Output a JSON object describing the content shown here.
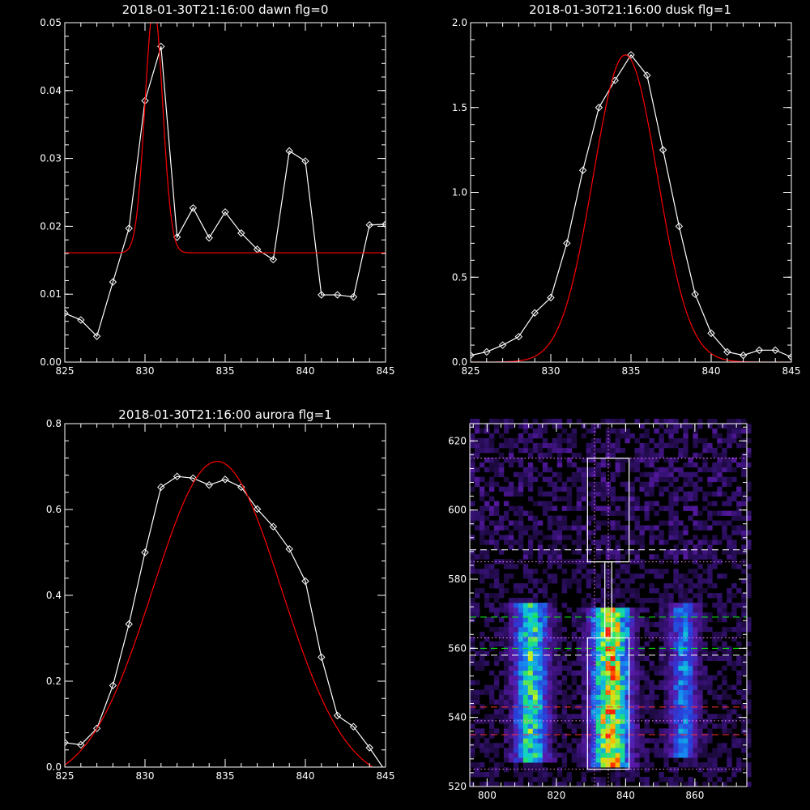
{
  "colors": {
    "background": "#000000",
    "axes": "#ffffff",
    "data_line": "#ffffff",
    "fit_line": "#ff0000",
    "white_dashed": "#ffffff",
    "green_dashed": "#00ff00",
    "red_dashed": "#ff3030",
    "dotted": "#ff88ff",
    "colormap": [
      "#000000",
      "#30106a",
      "#5a1aa8",
      "#2a3cd8",
      "#1688f0",
      "#10d0d0",
      "#20e070",
      "#c8f020",
      "#ffb000",
      "#ff2000"
    ]
  },
  "chart_data": [
    {
      "id": "dawn",
      "type": "line",
      "title": "2018-01-30T21:16:00 dawn flg=0",
      "xlabel": "",
      "ylabel": "",
      "xlim": [
        825,
        845
      ],
      "ylim": [
        0,
        0.05
      ],
      "xticks": [
        825,
        830,
        835,
        840,
        845
      ],
      "yticks": [
        0.0,
        0.01,
        0.02,
        0.03,
        0.04,
        0.05
      ],
      "ytick_labels": [
        "0.00",
        "0.01",
        "0.02",
        "0.03",
        "0.04",
        "0.05"
      ],
      "xtick_labels": [
        "825",
        "830",
        "835",
        "840",
        "845"
      ],
      "grid": false,
      "series": [
        {
          "role": "data",
          "color": "#ffffff",
          "marker": "diamond",
          "x": [
            825,
            826,
            827,
            828,
            829,
            830,
            831,
            832,
            833,
            834,
            835,
            836,
            837,
            838,
            839,
            840,
            841,
            842,
            843,
            844,
            845
          ],
          "y": [
            0.0072,
            0.0062,
            0.0038,
            0.0118,
            0.0197,
            0.0385,
            0.0465,
            0.0184,
            0.0227,
            0.0183,
            0.0221,
            0.019,
            0.0166,
            0.0151,
            0.0311,
            0.0296,
            0.0099,
            0.0099,
            0.0096,
            0.0202,
            0.0203
          ]
        },
        {
          "role": "fit",
          "color": "#ff0000",
          "gaussian": {
            "amplitude": 0.0363,
            "center": 830.55,
            "sigma": 0.55,
            "baseline": 0.0161
          }
        }
      ]
    },
    {
      "id": "dusk",
      "type": "line",
      "title": "2018-01-30T21:16:00 dusk flg=1",
      "xlabel": "",
      "ylabel": "",
      "xlim": [
        825,
        845
      ],
      "ylim": [
        0,
        2.0
      ],
      "xticks": [
        825,
        830,
        835,
        840,
        845
      ],
      "yticks": [
        0.0,
        0.5,
        1.0,
        1.5,
        2.0
      ],
      "ytick_labels": [
        "0.0",
        "0.5",
        "1.0",
        "1.5",
        "2.0"
      ],
      "xtick_labels": [
        "825",
        "830",
        "835",
        "840",
        "845"
      ],
      "grid": false,
      "series": [
        {
          "role": "data",
          "color": "#ffffff",
          "marker": "diamond",
          "x": [
            825,
            826,
            827,
            828,
            829,
            830,
            831,
            832,
            833,
            834,
            835,
            836,
            837,
            838,
            839,
            840,
            841,
            842,
            843,
            844,
            845
          ],
          "y": [
            0.04,
            0.06,
            0.1,
            0.15,
            0.29,
            0.38,
            0.7,
            1.13,
            1.5,
            1.66,
            1.81,
            1.69,
            1.25,
            0.8,
            0.4,
            0.17,
            0.06,
            0.04,
            0.07,
            0.07,
            0.03
          ]
        },
        {
          "role": "fit",
          "color": "#ff0000",
          "gaussian": {
            "amplitude": 1.81,
            "center": 834.65,
            "sigma": 2.0,
            "baseline": 0.0
          }
        }
      ]
    },
    {
      "id": "aurora",
      "type": "line",
      "title": "2018-01-30T21:16:00 aurora flg=1",
      "xlabel": "",
      "ylabel": "",
      "xlim": [
        825,
        845
      ],
      "ylim": [
        0,
        0.8
      ],
      "xticks": [
        825,
        830,
        835,
        840,
        845
      ],
      "yticks": [
        0.0,
        0.2,
        0.4,
        0.6,
        0.8
      ],
      "ytick_labels": [
        "0.0",
        "0.2",
        "0.4",
        "0.6",
        "0.8"
      ],
      "xtick_labels": [
        "825",
        "830",
        "835",
        "840",
        "845"
      ],
      "grid": false,
      "series": [
        {
          "role": "data",
          "color": "#ffffff",
          "marker": "diamond",
          "x": [
            825,
            826,
            827,
            828,
            829,
            830,
            831,
            832,
            833,
            834,
            835,
            836,
            837,
            838,
            839,
            840,
            841,
            842,
            843,
            844,
            845
          ],
          "y": [
            0.057,
            0.052,
            0.09,
            0.19,
            0.333,
            0.5,
            0.652,
            0.677,
            0.673,
            0.657,
            0.67,
            0.652,
            0.601,
            0.56,
            0.508,
            0.433,
            0.256,
            0.12,
            0.094,
            0.045,
            -0.01
          ]
        },
        {
          "role": "fit",
          "color": "#ff0000",
          "gaussian": {
            "amplitude": 0.752,
            "center": 834.5,
            "sigma": 4.0,
            "baseline": -0.04
          }
        }
      ]
    },
    {
      "id": "spectrogram",
      "type": "heatmap",
      "title": "",
      "xlabel": "",
      "ylabel": "",
      "xlim": [
        795,
        875
      ],
      "ylim": [
        520,
        625
      ],
      "xticks": [
        800,
        820,
        840,
        860
      ],
      "xtick_labels": [
        "800",
        "820",
        "840",
        "860"
      ],
      "yticks": [
        520,
        540,
        560,
        580,
        600,
        620
      ],
      "ytick_labels": [
        "520",
        "540",
        "560",
        "580",
        "600",
        "620"
      ],
      "grid": false,
      "bands": [
        {
          "center": 812,
          "width": 3.2,
          "y_from": 526,
          "y_to": 572,
          "peak": 0.72
        },
        {
          "center": 835,
          "width": 3.6,
          "y_from": 525,
          "y_to": 571,
          "peak": 1.0
        },
        {
          "center": 856,
          "width": 2.6,
          "y_from": 528,
          "y_to": 572,
          "peak": 0.45
        }
      ],
      "boxes": [
        {
          "x0": 829,
          "x1": 841,
          "y0": 585,
          "y1": 615
        },
        {
          "x0": 829,
          "x1": 841,
          "y0": 525,
          "y1": 563
        },
        {
          "x0": 834,
          "x1": 836,
          "y0": 563,
          "y1": 585
        }
      ],
      "hlines": [
        {
          "y": 588.5,
          "style": "dashed",
          "color": "#ffffff"
        },
        {
          "y": 558,
          "style": "dashed",
          "color": "#ffffff"
        },
        {
          "y": 569,
          "style": "dashed",
          "color": "#00ff00"
        },
        {
          "y": 560,
          "style": "dashed",
          "color": "#00ff00"
        },
        {
          "y": 543,
          "style": "dashed",
          "color": "#ff3030"
        },
        {
          "y": 535,
          "style": "dashed",
          "color": "#ff3030"
        },
        {
          "y": 615,
          "style": "dotted",
          "color": "#ff88ff"
        },
        {
          "y": 585,
          "style": "dotted",
          "color": "#ff88ff"
        },
        {
          "y": 563,
          "style": "dotted",
          "color": "#ff88ff"
        },
        {
          "y": 539,
          "style": "dotted",
          "color": "#ff88ff"
        },
        {
          "y": 525,
          "style": "dotted",
          "color": "#ff88ff"
        }
      ],
      "vlines": [
        {
          "x": 831,
          "style": "dotted",
          "color": "#ff88ff"
        },
        {
          "x": 835,
          "style": "dotted",
          "color": "#ff88ff"
        }
      ]
    }
  ]
}
